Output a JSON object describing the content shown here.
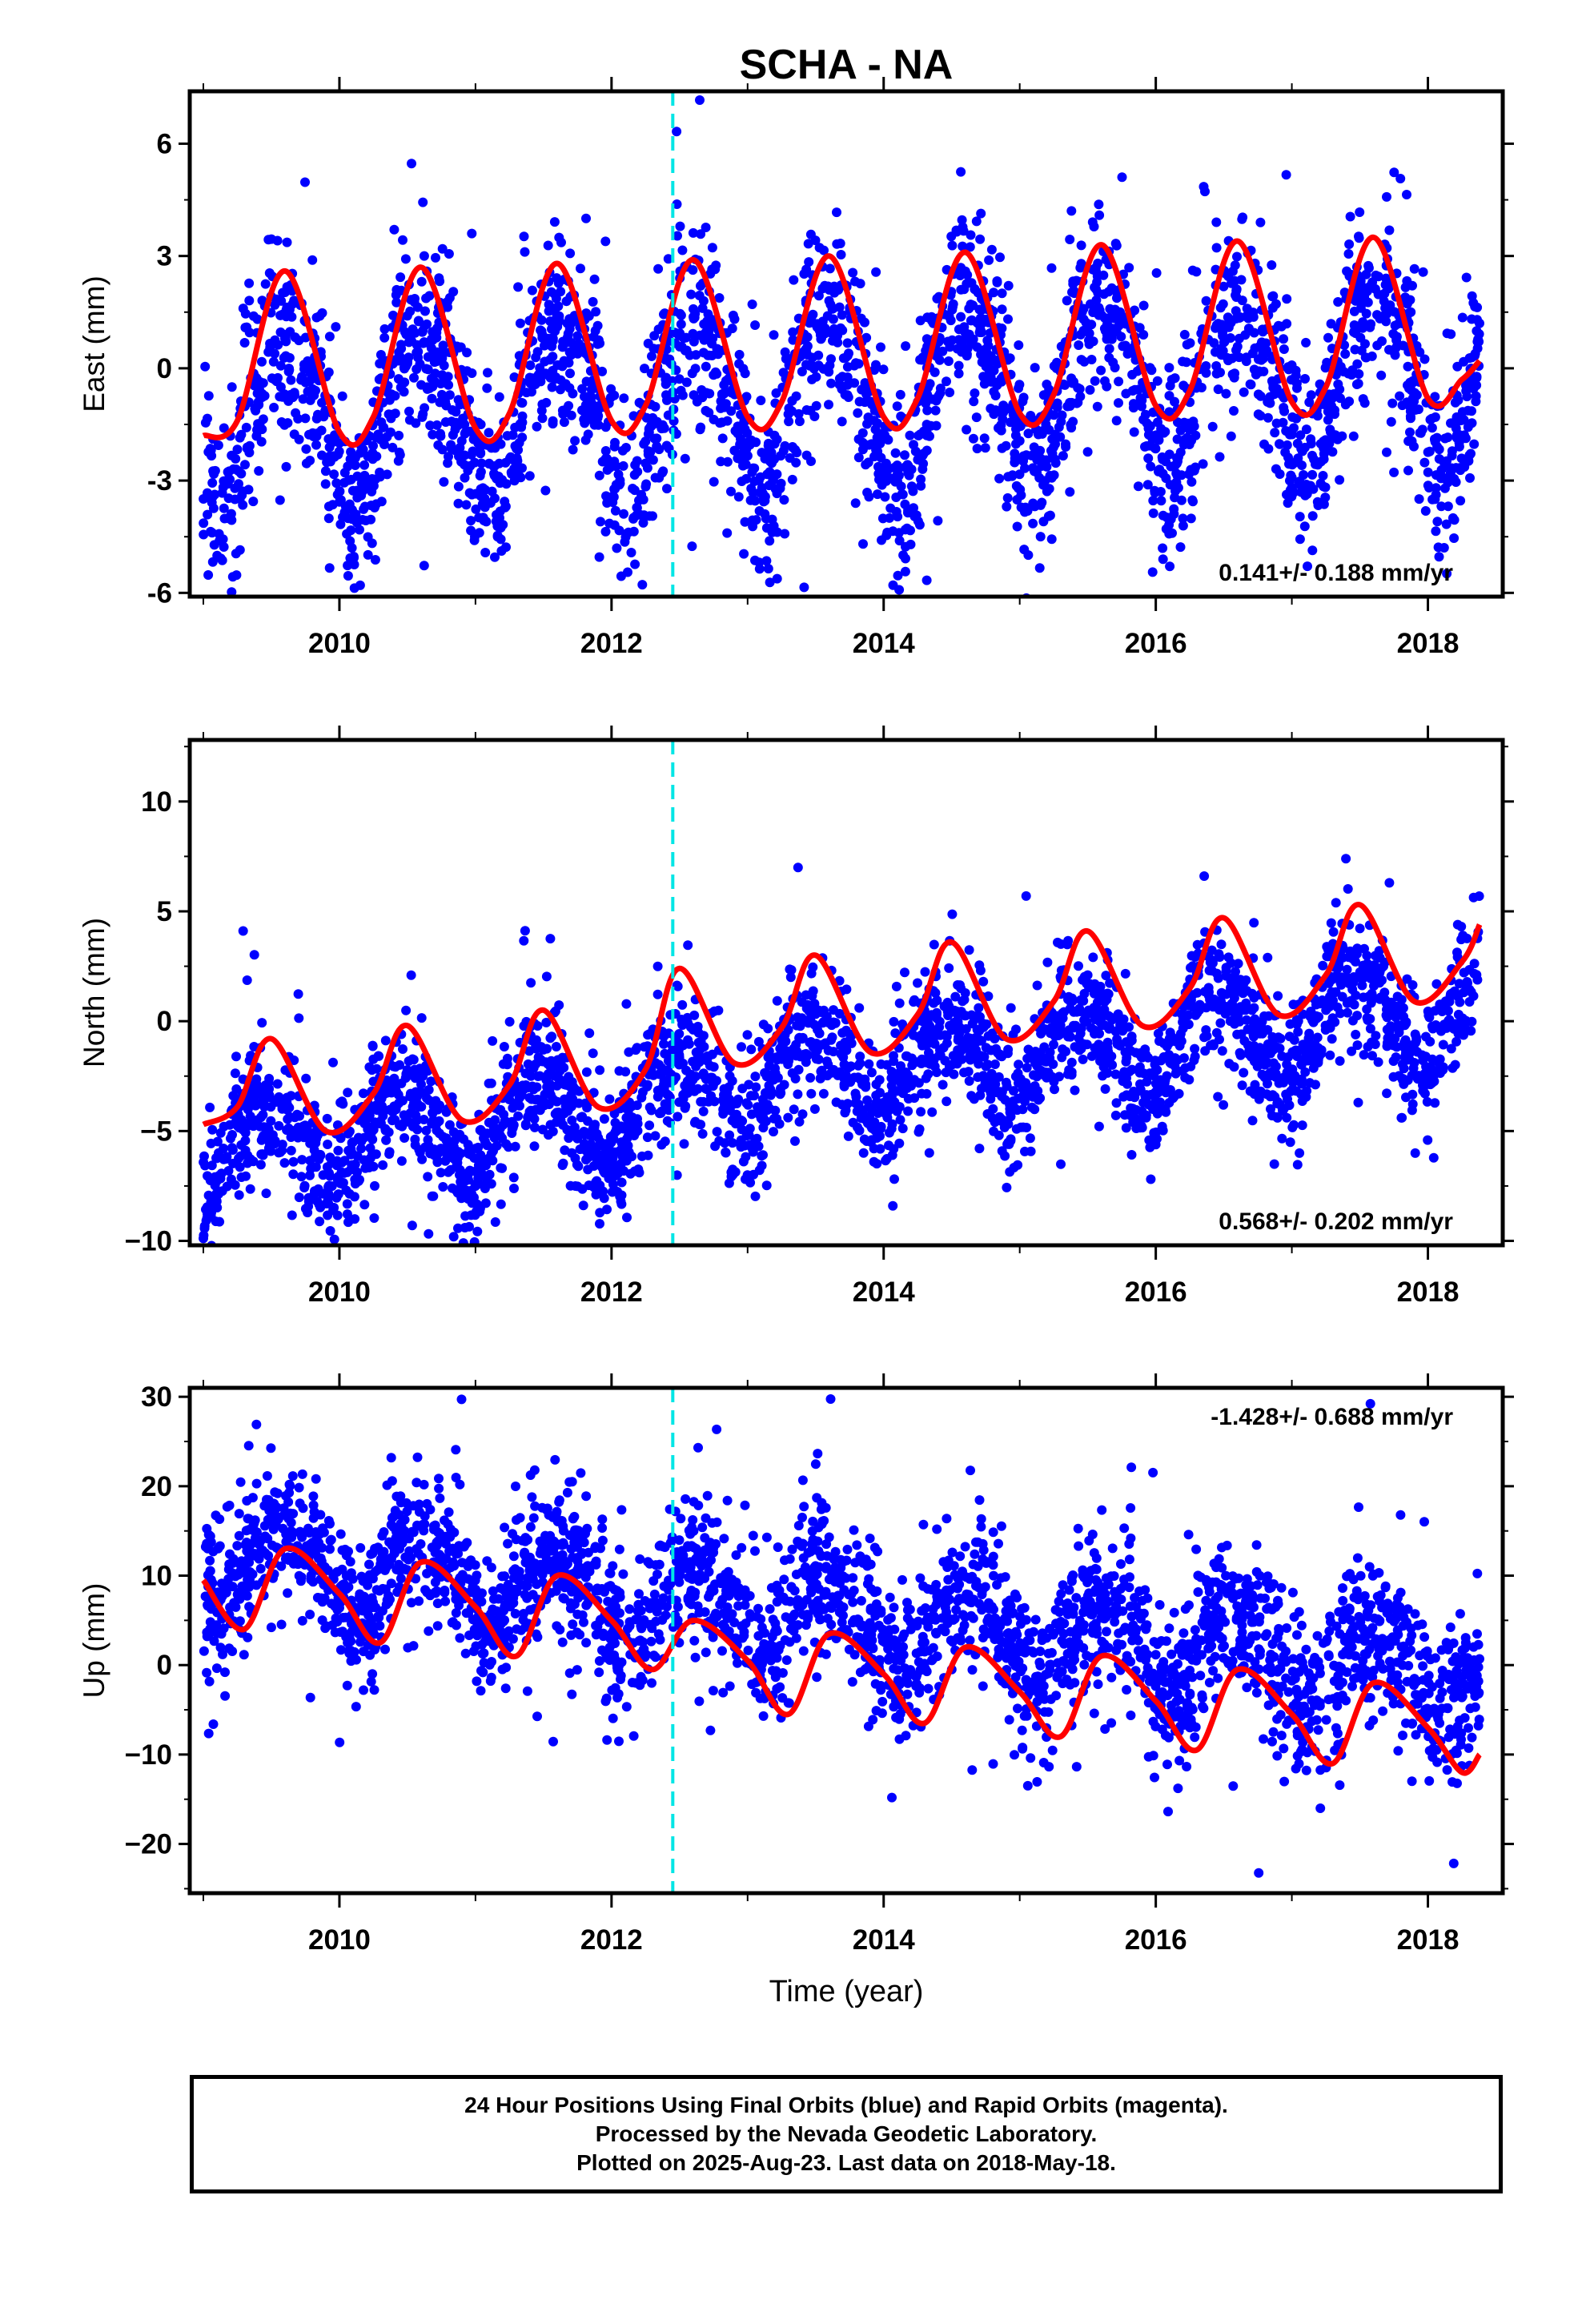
{
  "title": "SCHA - NA",
  "chart_data": [
    {
      "type": "scatter",
      "panel": "east",
      "ylabel": "East (mm)",
      "ylim": [
        -6.1,
        7.4
      ],
      "yticks": [
        -6,
        -3,
        0,
        3,
        6
      ],
      "ytick_labels": [
        "-6",
        "-3",
        "0",
        "3",
        "6"
      ],
      "xlim": [
        2008.9,
        2018.55
      ],
      "xticks": [
        2010,
        2012,
        2014,
        2016,
        2018
      ],
      "xtick_labels": [
        "2010",
        "2012",
        "2014",
        "2016",
        "2018"
      ],
      "rate_label": "0.141+/- 0.188 mm/yr",
      "rate_position": "bottom-right",
      "event_x": 2012.45,
      "series": [
        {
          "kind": "points",
          "color": "#0000ff",
          "x_range": [
            2009.0,
            2018.38
          ],
          "count": 3000,
          "trend": 0.141,
          "offset": -0.7,
          "amp": 2.2,
          "phase": 2009.35,
          "scatter": 1.25,
          "outliers": 0.06
        },
        {
          "kind": "fit",
          "color": "#ff0000",
          "x": [
            2009.0,
            2009.25,
            2009.6,
            2010.0,
            2010.25,
            2010.6,
            2011.0,
            2011.25,
            2011.6,
            2012.0,
            2012.25,
            2012.6,
            2013.0,
            2013.25,
            2013.6,
            2014.0,
            2014.25,
            2014.6,
            2015.0,
            2015.25,
            2015.6,
            2016.0,
            2016.25,
            2016.6,
            2017.0,
            2017.25,
            2017.6,
            2018.0,
            2018.25,
            2018.38
          ],
          "y": [
            -1.8,
            -1.4,
            2.6,
            -1.7,
            -1.3,
            2.7,
            -1.6,
            -1.2,
            2.8,
            -1.4,
            -1.0,
            2.9,
            -1.3,
            -0.9,
            3.0,
            -1.3,
            -0.8,
            3.1,
            -1.2,
            -0.7,
            3.3,
            -1.0,
            -0.6,
            3.4,
            -0.9,
            -0.5,
            3.5,
            -0.8,
            -0.3,
            0.2
          ]
        }
      ]
    },
    {
      "type": "scatter",
      "panel": "north",
      "ylabel": "North (mm)",
      "ylim": [
        -10.2,
        12.8
      ],
      "yticks": [
        -10,
        -5,
        0,
        5,
        10
      ],
      "ytick_labels": [
        "−10",
        "−5",
        "0",
        "5",
        "10"
      ],
      "xlim": [
        2008.9,
        2018.55
      ],
      "xticks": [
        2010,
        2012,
        2014,
        2016,
        2018
      ],
      "xtick_labels": [
        "2010",
        "2012",
        "2014",
        "2016",
        "2018"
      ],
      "rate_label": "0.568+/- 0.202 mm/yr",
      "rate_position": "bottom-right",
      "event_x": 2012.45,
      "series": [
        {
          "kind": "points",
          "color": "#0000ff",
          "x_range": [
            2009.0,
            2018.38
          ],
          "count": 3000,
          "trend": 0.568,
          "offset": -3.2,
          "amp": 2.0,
          "phase": 2009.2,
          "scatter": 1.45,
          "outliers": 0.06,
          "jump_x": 2012.45,
          "jump": 1.0
        },
        {
          "kind": "fit",
          "color": "#ff0000",
          "x": [
            2009.0,
            2009.25,
            2009.5,
            2009.9,
            2010.25,
            2010.5,
            2010.9,
            2011.25,
            2011.5,
            2011.9,
            2012.25,
            2012.5,
            2012.9,
            2013.25,
            2013.5,
            2013.9,
            2014.25,
            2014.5,
            2014.9,
            2015.25,
            2015.5,
            2015.9,
            2016.25,
            2016.5,
            2016.9,
            2017.25,
            2017.5,
            2017.9,
            2018.25,
            2018.38
          ],
          "y": [
            -4.7,
            -3.9,
            -0.8,
            -5.0,
            -3.3,
            -0.2,
            -4.5,
            -2.9,
            0.5,
            -3.9,
            -2.2,
            2.4,
            -1.9,
            -0.3,
            3.0,
            -1.4,
            0.3,
            3.6,
            -0.8,
            0.9,
            4.1,
            -0.2,
            1.5,
            4.7,
            0.3,
            2.1,
            5.3,
            0.9,
            2.7,
            4.4
          ]
        }
      ]
    },
    {
      "type": "scatter",
      "panel": "up",
      "ylabel": "Up (mm)",
      "ylim": [
        -25.5,
        31.0
      ],
      "yticks": [
        -20,
        -10,
        0,
        10,
        20,
        30
      ],
      "ytick_labels": [
        "−20",
        "−10",
        "0",
        "10",
        "20",
        "30"
      ],
      "xlim": [
        2008.9,
        2018.55
      ],
      "xticks": [
        2010,
        2012,
        2014,
        2016,
        2018
      ],
      "xtick_labels": [
        "2010",
        "2012",
        "2014",
        "2016",
        "2018"
      ],
      "xlabel": "Time (year)",
      "rate_label": "-1.428+/- 0.688 mm/yr",
      "rate_position": "top-right",
      "event_x": 2012.45,
      "series": [
        {
          "kind": "points",
          "color": "#0000ff",
          "x_range": [
            2009.0,
            2018.38
          ],
          "count": 3000,
          "trend": -1.428,
          "offset": 5.5,
          "amp": 4.5,
          "phase": 2009.35,
          "scatter": 4.0,
          "outliers": 0.07
        },
        {
          "kind": "fit",
          "color": "#ff0000",
          "x": [
            2009.0,
            2009.3,
            2009.6,
            2010.0,
            2010.3,
            2010.6,
            2011.0,
            2011.3,
            2011.6,
            2012.0,
            2012.3,
            2012.6,
            2013.0,
            2013.3,
            2013.6,
            2014.0,
            2014.3,
            2014.6,
            2015.0,
            2015.3,
            2015.6,
            2016.0,
            2016.3,
            2016.6,
            2017.0,
            2017.3,
            2017.6,
            2018.0,
            2018.25,
            2018.38
          ],
          "y": [
            9.5,
            4.0,
            13.0,
            8.0,
            2.5,
            11.5,
            6.5,
            1.0,
            10.0,
            5.0,
            -0.5,
            5.0,
            0.5,
            -5.5,
            3.5,
            -1.0,
            -6.5,
            2.0,
            -3.0,
            -8.0,
            1.0,
            -4.0,
            -9.5,
            -0.5,
            -5.5,
            -11.0,
            -2.0,
            -7.0,
            -12.0,
            -10.0
          ]
        }
      ]
    }
  ],
  "caption": {
    "line1": "24 Hour Positions Using Final Orbits (blue) and Rapid Orbits (magenta).",
    "line2": "Processed by the Nevada Geodetic Laboratory.",
    "line3": "Plotted on 2025-Aug-23. Last data on 2018-May-18."
  }
}
